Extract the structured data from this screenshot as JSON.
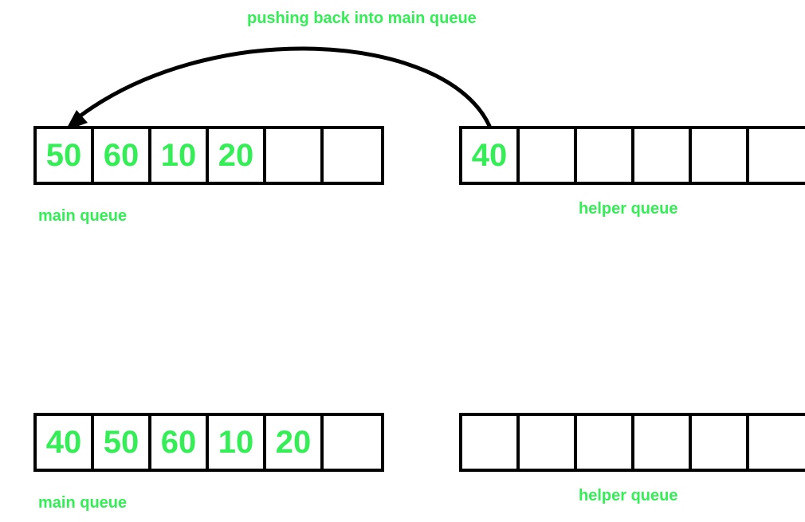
{
  "arrow_label": "pushing back into main queue",
  "colors": {
    "accent": "#33ee55",
    "stroke": "#000000"
  },
  "steps": [
    {
      "main_queue": {
        "label": "main queue",
        "cells": [
          "50",
          "60",
          "10",
          "20",
          "",
          ""
        ]
      },
      "helper_queue": {
        "label": "helper queue",
        "cells": [
          "40",
          "",
          "",
          "",
          "",
          ""
        ]
      }
    },
    {
      "main_queue": {
        "label": "main queue",
        "cells": [
          "40",
          "50",
          "60",
          "10",
          "20",
          ""
        ]
      },
      "helper_queue": {
        "label": "helper queue",
        "cells": [
          "",
          "",
          "",
          "",
          "",
          ""
        ]
      }
    }
  ]
}
